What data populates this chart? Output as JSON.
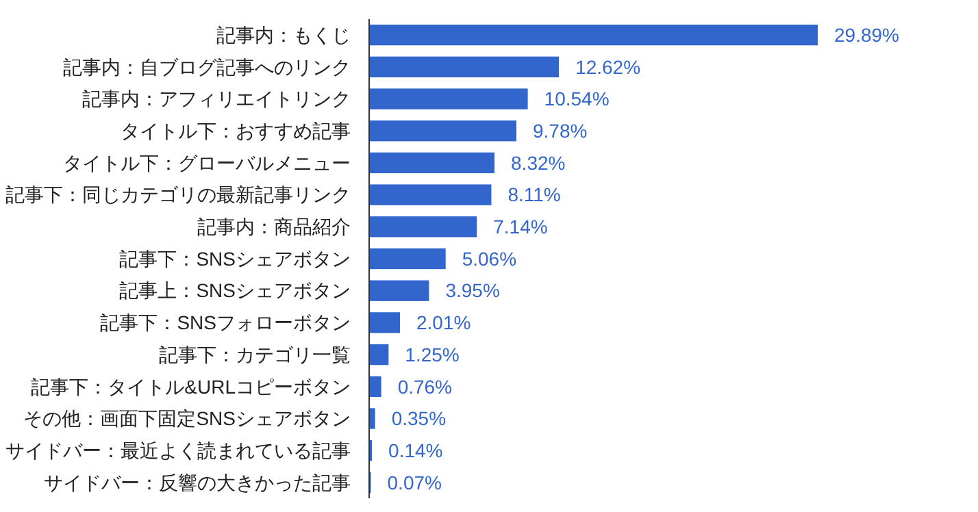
{
  "chart_data": {
    "type": "bar",
    "orientation": "horizontal",
    "categories": [
      "記事内：もくじ",
      "記事内：自ブログ記事へのリンク",
      "記事内：アフィリエイトリンク",
      "タイトル下：おすすめ記事",
      "タイトル下：グローバルメニュー",
      "記事下：同じカテゴリの最新記事リンク",
      "記事内：商品紹介",
      "記事下：SNSシェアボタン",
      "記事上：SNSシェアボタン",
      "記事下：SNSフォローボタン",
      "記事下：カテゴリ一覧",
      "記事下：タイトル&URLコピーボタン",
      "その他：画面下固定SNSシェアボタン",
      "サイドバー：最近よく読まれている記事",
      "サイドバー：反響の大きかった記事"
    ],
    "values": [
      29.89,
      12.62,
      10.54,
      9.78,
      8.32,
      8.11,
      7.14,
      5.06,
      3.95,
      2.01,
      1.25,
      0.76,
      0.35,
      0.14,
      0.07
    ],
    "value_labels": [
      "29.89%",
      "12.62%",
      "10.54%",
      "9.78%",
      "8.32%",
      "8.11%",
      "7.14%",
      "5.06%",
      "3.95%",
      "2.01%",
      "1.25%",
      "0.76%",
      "0.35%",
      "0.14%",
      "0.07%"
    ],
    "color": "#3366cc"
  }
}
